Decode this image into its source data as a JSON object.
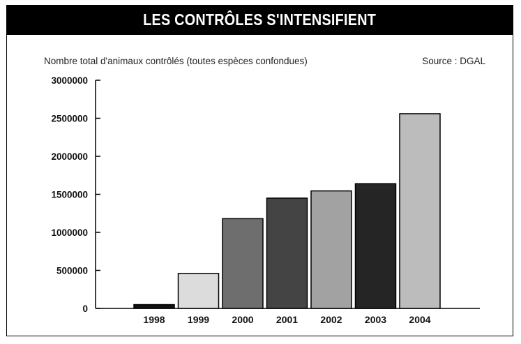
{
  "header": {
    "title": "LES CONTRÔLES S'INTENSIFIENT"
  },
  "chart_data": {
    "type": "bar",
    "title": "LES CONTRÔLES S'INTENSIFIENT",
    "subtitle": "Nombre total d'animaux contrôlés (toutes espèces confondues)",
    "source": "Source : DGAL",
    "xlabel": "",
    "ylabel": "",
    "ylim": [
      0,
      3000000
    ],
    "yticks": [
      0,
      500000,
      1000000,
      1500000,
      2000000,
      2500000,
      3000000
    ],
    "ytick_labels": [
      "0",
      "500000",
      "1000000",
      "1500000",
      "2000000",
      "2500000",
      "3000000"
    ],
    "categories": [
      "1998",
      "1999",
      "2000",
      "2001",
      "2002",
      "2003",
      "2004"
    ],
    "values": [
      50000,
      460000,
      1180000,
      1450000,
      1545000,
      1640000,
      2560000
    ],
    "bar_colors": [
      "#111111",
      "#dcdcdc",
      "#6e6e6e",
      "#444444",
      "#a2a2a2",
      "#252525",
      "#bcbcbc"
    ],
    "grid": false,
    "legend": "none"
  }
}
